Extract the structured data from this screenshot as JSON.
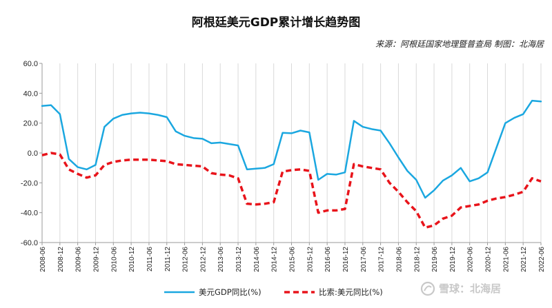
{
  "chart_data": {
    "type": "line",
    "title": "阿根廷美元GDP累计增长趋势图",
    "source": "来源：阿根廷国家地理暨普查局 制图：北海居",
    "ylim": [
      -60,
      60
    ],
    "yticks": [
      "60.0",
      "40.0",
      "20.0",
      "0.0",
      "-20.0",
      "-40.0",
      "-60.0"
    ],
    "grid": "vertical",
    "legend_position": "bottom",
    "categories": [
      "2008-06",
      "2008-09",
      "2008-12",
      "2009-03",
      "2009-06",
      "2009-09",
      "2009-12",
      "2010-03",
      "2010-06",
      "2010-09",
      "2010-12",
      "2011-03",
      "2011-06",
      "2011-09",
      "2011-12",
      "2012-03",
      "2012-06",
      "2012-09",
      "2012-12",
      "2013-03",
      "2013-06",
      "2013-09",
      "2013-12",
      "2014-03",
      "2014-06",
      "2014-09",
      "2014-12",
      "2015-03",
      "2015-06",
      "2015-09",
      "2015-12",
      "2016-03",
      "2016-06",
      "2016-09",
      "2016-12",
      "2017-03",
      "2017-06",
      "2017-09",
      "2017-12",
      "2018-03",
      "2018-06",
      "2018-09",
      "2018-12",
      "2019-03",
      "2019-06",
      "2019-09",
      "2019-12",
      "2020-03",
      "2020-06",
      "2020-09",
      "2020-12",
      "2021-03",
      "2021-06",
      "2021-09",
      "2021-12",
      "2022-03",
      "2022-06"
    ],
    "x_tick_labels": [
      "2008-06",
      "2008-12",
      "2009-06",
      "2009-12",
      "2010-06",
      "2010-12",
      "2011-06",
      "2011-12",
      "2012-06",
      "2012-12",
      "2013-06",
      "2013-12",
      "2014-06",
      "2014-12",
      "2015-06",
      "2015-12",
      "2016-06",
      "2016-12",
      "2017-06",
      "2017-12",
      "2018-06",
      "2018-12",
      "2019-06",
      "2019-12",
      "2020-06",
      "2020-12",
      "2021-06",
      "2021-12",
      "2022-06"
    ],
    "series": [
      {
        "name": "美元GDP同比(%)",
        "color": "#1aa7e0",
        "style": "solid",
        "values": [
          31.5,
          32,
          26,
          -4,
          -9.5,
          -11,
          -8,
          17.5,
          23,
          25.5,
          26.5,
          27,
          26.5,
          25.5,
          24,
          14.5,
          11.5,
          10,
          9.5,
          6.5,
          7,
          6,
          5,
          -11,
          -10.5,
          -10,
          -7.5,
          13.5,
          13.2,
          15,
          13.8,
          -18,
          -14,
          -14.5,
          -13,
          21.5,
          17.5,
          16,
          15,
          6.5,
          -3,
          -12,
          -18,
          -30,
          -25,
          -18.5,
          -15,
          -10,
          -19,
          -17,
          -13,
          3.5,
          20,
          23.5,
          26,
          35,
          34.5
        ]
      },
      {
        "name": "比索:美元同比(%)",
        "color": "#e8141b",
        "style": "dashed",
        "values": [
          -1.5,
          0,
          -1,
          -11,
          -14,
          -16.5,
          -15,
          -8,
          -6,
          -5,
          -4.5,
          -4.5,
          -4.5,
          -5,
          -5.5,
          -7.5,
          -8,
          -8.5,
          -9,
          -13.5,
          -14.5,
          -15,
          -17,
          -34,
          -34.5,
          -34,
          -33,
          -12.5,
          -11.5,
          -11,
          -12,
          -40,
          -38.5,
          -38.5,
          -37.5,
          -7.5,
          -9,
          -10,
          -11,
          -20,
          -26,
          -33,
          -39,
          -50,
          -48.5,
          -44,
          -42,
          -36.5,
          -35.5,
          -34.5,
          -32,
          -30.5,
          -29.5,
          -28,
          -26,
          -17,
          -19
        ]
      }
    ]
  },
  "watermark": "雪球：北海居"
}
